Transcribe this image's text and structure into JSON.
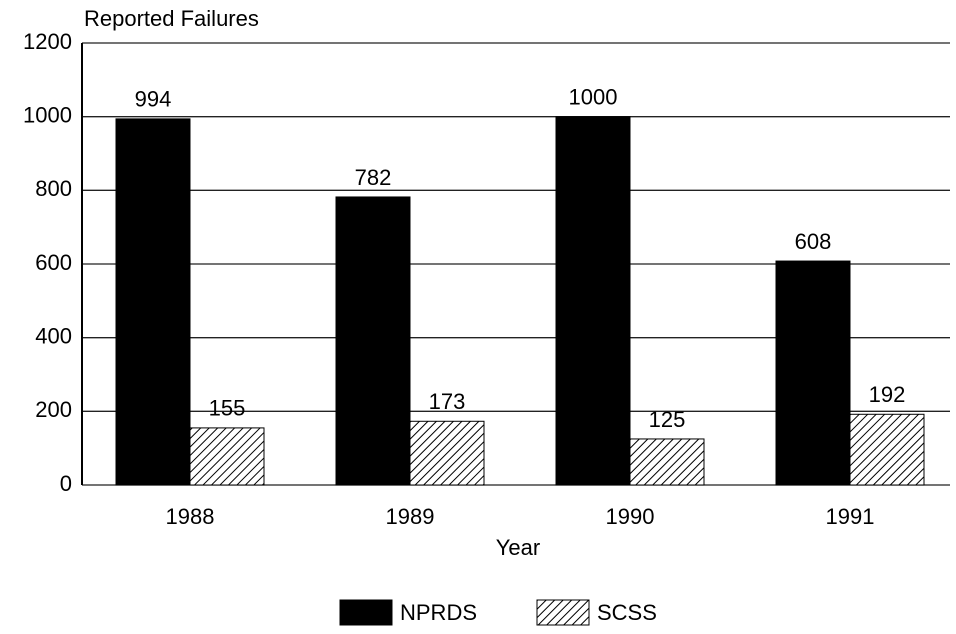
{
  "chart_data": {
    "type": "bar",
    "title": "Reported Failures",
    "x_label": "Year",
    "categories": [
      "1988",
      "1989",
      "1990",
      "1991"
    ],
    "series": [
      {
        "name": "NPRDS",
        "color": "#000000",
        "values": [
          994,
          782,
          1000,
          608
        ]
      },
      {
        "name": "SCSS",
        "color": "#000000",
        "pattern": "hatch",
        "values": [
          155,
          173,
          125,
          192
        ]
      }
    ],
    "ylim": [
      0,
      1200
    ],
    "yticks": [
      0,
      200,
      400,
      600,
      800,
      1000,
      1200
    ],
    "grid": true,
    "legend": "bottom"
  }
}
